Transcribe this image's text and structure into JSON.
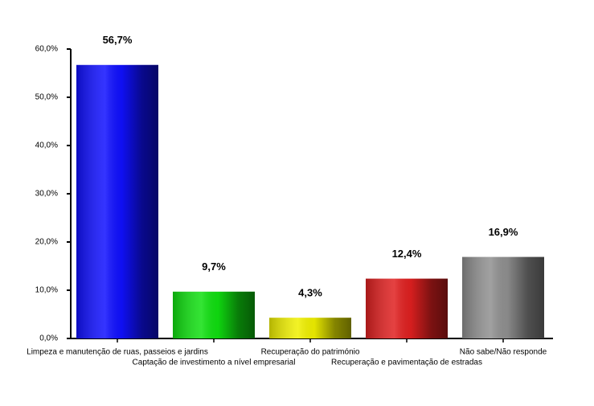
{
  "chart_data": {
    "type": "bar",
    "categories": [
      "Limpeza e manutenção de ruas, passeios e jardins",
      "Captação de investimento a nível empresarial",
      "Recuperação do património",
      "Recuperação e pavimentação de estradas",
      "Não sabe/Não responde"
    ],
    "values": [
      56.7,
      9.7,
      4.3,
      12.4,
      16.9
    ],
    "value_labels": [
      "56,7%",
      "9,7%",
      "4,3%",
      "12,4%",
      "16,9%"
    ],
    "colors": [
      "#1010ff",
      "#10e010",
      "#f0f000",
      "#e02020",
      "#909090"
    ],
    "ylim": [
      0,
      60
    ],
    "yticks": [
      {
        "value": 0,
        "label": "0,0%"
      },
      {
        "value": 10,
        "label": "10,0%"
      },
      {
        "value": 20,
        "label": "20,0%"
      },
      {
        "value": 30,
        "label": "30,0%"
      },
      {
        "value": 40,
        "label": "40,0%"
      },
      {
        "value": 50,
        "label": "50,0%"
      },
      {
        "value": 60,
        "label": "60,0%"
      }
    ]
  }
}
